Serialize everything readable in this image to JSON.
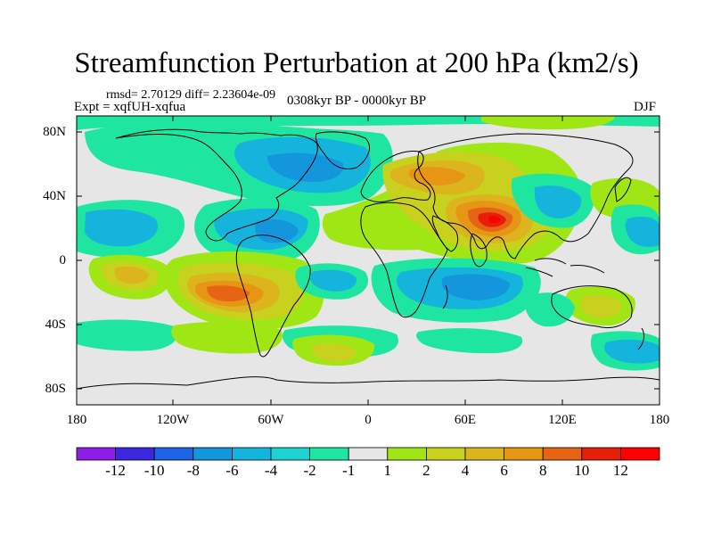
{
  "title": "Streamfunction Perturbation at 200 hPa (km2/s)",
  "stats": "rmsd= 2.70129  diff= 2.23604e-09",
  "experiment": "Expt = xqfUH-xqfua",
  "period": "0308kyr BP - 0000kyr BP",
  "season": "DJF",
  "lat_ticks": [
    "80N",
    "40N",
    "0",
    "40S",
    "80S"
  ],
  "lon_ticks": [
    "180",
    "120W",
    "60W",
    "0",
    "60E",
    "120E",
    "180"
  ],
  "colorbar": {
    "labels": [
      "-12",
      "-10",
      "-8",
      "-6",
      "-4",
      "-2",
      "-1",
      "1",
      "2",
      "4",
      "6",
      "8",
      "10",
      "12"
    ],
    "colors": [
      "#8c1ee6",
      "#3c28dc",
      "#1e64e6",
      "#1496dc",
      "#14b4dc",
      "#1ed2d2",
      "#1ee6a0",
      "#e6e6e6",
      "#a0e614",
      "#c8d21e",
      "#dcb41e",
      "#e69614",
      "#e66414",
      "#e61e0a",
      "#ff0000"
    ]
  },
  "map_data": {
    "lon_range": [
      -180,
      180
    ],
    "lat_range": [
      -90,
      90
    ],
    "anomalies": [
      {
        "lon": 78,
        "lat": 27,
        "value": 12
      },
      {
        "lon": 45,
        "lat": 50,
        "value": 6
      },
      {
        "lon": 150,
        "lat": 48,
        "value": 2
      },
      {
        "lon": -90,
        "lat": -22,
        "value": 8
      },
      {
        "lon": -145,
        "lat": -10,
        "value": 4
      },
      {
        "lon": -20,
        "lat": -55,
        "value": 4
      },
      {
        "lon": 150,
        "lat": -30,
        "value": 4
      },
      {
        "lon": -55,
        "lat": 62,
        "value": -6
      },
      {
        "lon": -75,
        "lat": 22,
        "value": -6
      },
      {
        "lon": -165,
        "lat": 28,
        "value": -4
      },
      {
        "lon": 75,
        "lat": -17,
        "value": -4
      },
      {
        "lon": 125,
        "lat": 38,
        "value": -4
      },
      {
        "lon": -100,
        "lat": -70,
        "value": -2
      },
      {
        "lon": 155,
        "lat": -70,
        "value": -2
      },
      {
        "lon": 130,
        "lat": -20,
        "value": -2
      }
    ]
  }
}
